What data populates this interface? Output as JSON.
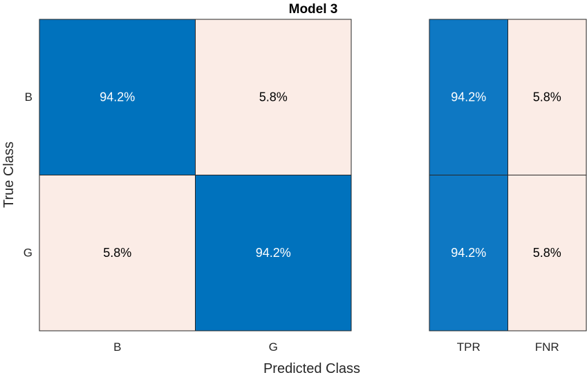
{
  "chart_data": {
    "type": "heatmap",
    "title": "Model 3",
    "xlabel": "Predicted Class",
    "ylabel": "True Class",
    "row_labels": [
      "B",
      "G"
    ],
    "col_labels": [
      "B",
      "G"
    ],
    "values": [
      [
        "94.2%",
        "5.8%"
      ],
      [
        "5.8%",
        "94.2%"
      ]
    ],
    "summary": {
      "col_labels": [
        "TPR",
        "FNR"
      ],
      "values": [
        [
          "94.2%",
          "5.8%"
        ],
        [
          "94.2%",
          "5.8%"
        ]
      ]
    },
    "colors": {
      "high": "#0072BD",
      "high_summary": "#0E78C3",
      "low": "#FBECE6",
      "text_on_high": "#ffffff",
      "text_on_low": "#000000"
    }
  }
}
